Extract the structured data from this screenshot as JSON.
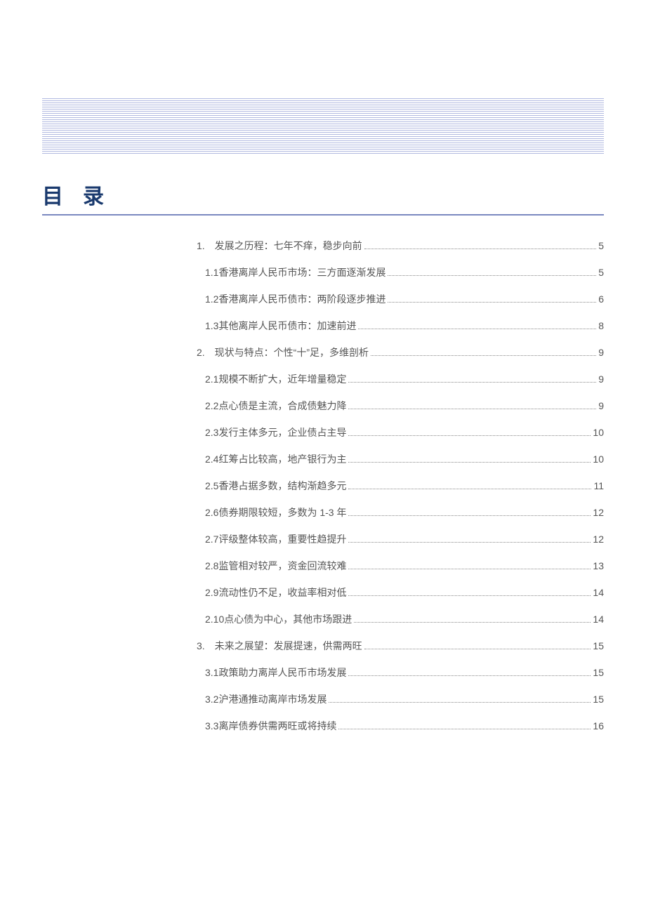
{
  "title": "目录",
  "colors": {
    "title_color": "#1a3a6e",
    "underline_color": "#7a88c0",
    "header_line_color": "#b0b8e0",
    "text_color": "#555555",
    "dot_color": "#888888",
    "background": "#ffffff"
  },
  "toc": [
    {
      "level": 1,
      "num": "1.",
      "label": "发展之历程：七年不痒，稳步向前",
      "page": "5"
    },
    {
      "level": 2,
      "num": "1.1",
      "label": "香港离岸人民币市场：三方面逐渐发展",
      "page": "5"
    },
    {
      "level": 2,
      "num": "1.2",
      "label": "香港离岸人民币债市：两阶段逐步推进",
      "page": "6"
    },
    {
      "level": 2,
      "num": "1.3",
      "label": "其他离岸人民币债市：加速前进",
      "page": "8"
    },
    {
      "level": 1,
      "num": "2.",
      "label": "现状与特点：个性“十”足，多维剖析",
      "page": "9"
    },
    {
      "level": 2,
      "num": "2.1",
      "label": "规模不断扩大，近年增量稳定",
      "page": "9"
    },
    {
      "level": 2,
      "num": "2.2",
      "label": "点心债是主流，合成债魅力降",
      "page": "9"
    },
    {
      "level": 2,
      "num": "2.3",
      "label": "发行主体多元，企业债占主导",
      "page": "10"
    },
    {
      "level": 2,
      "num": "2.4",
      "label": "红筹占比较高，地产银行为主",
      "page": "10"
    },
    {
      "level": 2,
      "num": "2.5",
      "label": "香港占据多数，结构渐趋多元",
      "page": "11"
    },
    {
      "level": 2,
      "num": "2.6",
      "label": "债券期限较短，多数为 1-3 年",
      "page": "12"
    },
    {
      "level": 2,
      "num": "2.7",
      "label": "评级整体较高，重要性趋提升",
      "page": "12"
    },
    {
      "level": 2,
      "num": "2.8",
      "label": "监管相对较严，资金回流较难",
      "page": "13"
    },
    {
      "level": 2,
      "num": "2.9",
      "label": "流动性仍不足，收益率相对低",
      "page": "14"
    },
    {
      "level": 2,
      "num": "2.10",
      "label": "点心债为中心，其他市场跟进",
      "page": "14"
    },
    {
      "level": 1,
      "num": "3.",
      "label": "未来之展望：发展提速，供需两旺",
      "page": "15"
    },
    {
      "level": 2,
      "num": "3.1",
      "label": "政策助力离岸人民币市场发展",
      "page": "15"
    },
    {
      "level": 2,
      "num": "3.2",
      "label": "沪港通推动离岸市场发展",
      "page": "15"
    },
    {
      "level": 2,
      "num": "3.3",
      "label": "离岸债券供需两旺或将持续",
      "page": "16"
    }
  ]
}
